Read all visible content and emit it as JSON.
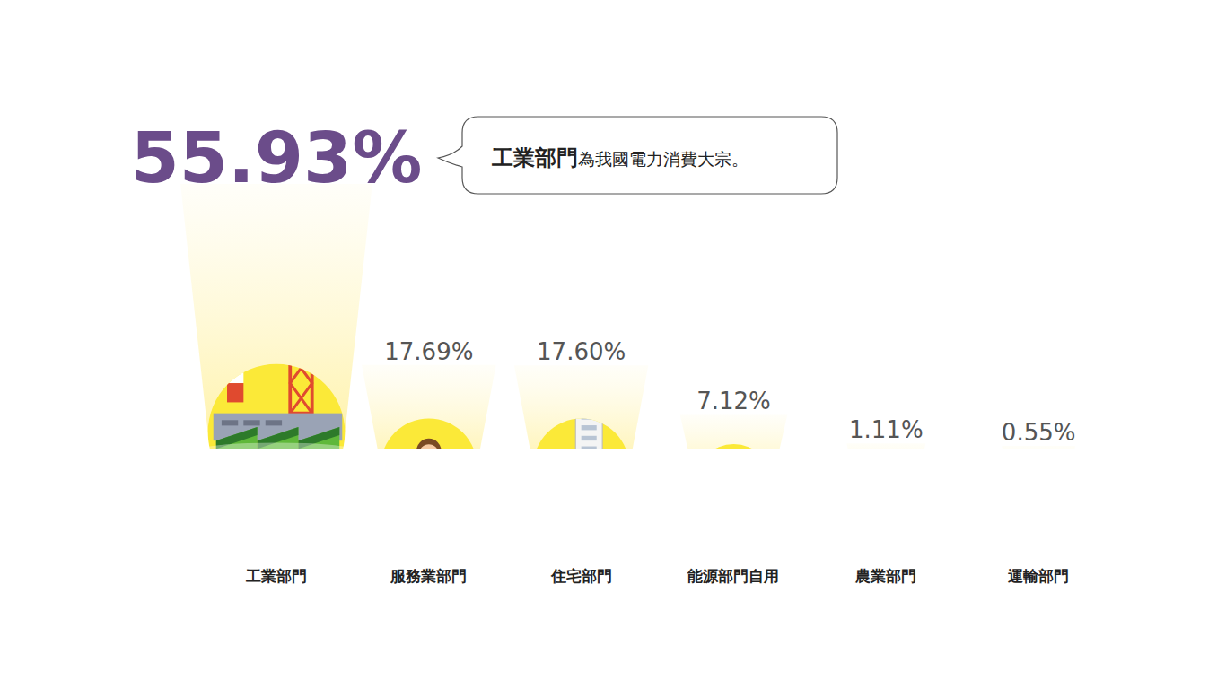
{
  "chart_data": {
    "type": "bar",
    "categories": [
      "工業部門",
      "服務業部門",
      "住宅部門",
      "能源部門自用",
      "農業部門",
      "運輸部門"
    ],
    "values": [
      55.93,
      17.69,
      17.6,
      7.12,
      1.11,
      0.55
    ],
    "value_labels": [
      "55.93%",
      "17.69%",
      "17.60%",
      "7.12%",
      "1.11%",
      "0.55%"
    ],
    "data_labels": true,
    "tick_labels": "x",
    "colors": [
      "#6b4c8a",
      "#2f7fc5",
      "#2f7fc5",
      "#2f7fc5",
      "#2f7fc5",
      "#2f7fc5"
    ],
    "annotation": [
      "工業部門",
      "為我國電力消費大宗。"
    ]
  }
}
